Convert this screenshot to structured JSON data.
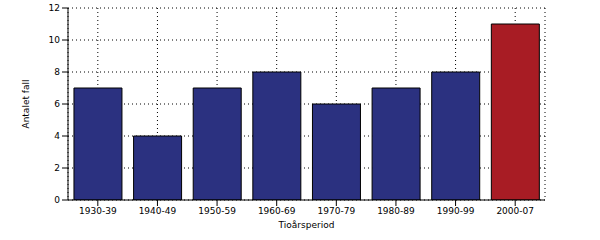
{
  "chart_data": {
    "type": "bar",
    "categories": [
      "1930-39",
      "1940-49",
      "1950-59",
      "1960-69",
      "1970-79",
      "1980-89",
      "1990-99",
      "2000-07"
    ],
    "values": [
      7,
      4,
      7,
      8,
      6,
      7,
      8,
      11
    ],
    "colors": [
      "#2b3180",
      "#2b3180",
      "#2b3180",
      "#2b3180",
      "#2b3180",
      "#2b3180",
      "#2b3180",
      "#a81c24"
    ],
    "x_label": "Tioårsperiod",
    "y_label": "Antalet fall",
    "ylim": [
      0,
      12
    ],
    "yticks": [
      0,
      2,
      4,
      6,
      8,
      10,
      12
    ],
    "grid": true
  }
}
